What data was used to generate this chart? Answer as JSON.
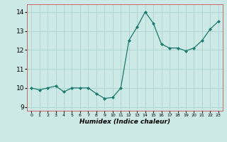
{
  "x": [
    0,
    1,
    2,
    3,
    4,
    5,
    6,
    7,
    8,
    9,
    10,
    11,
    12,
    13,
    14,
    15,
    16,
    17,
    18,
    19,
    20,
    21,
    22,
    23
  ],
  "y": [
    10.0,
    9.9,
    10.0,
    10.1,
    9.8,
    10.0,
    10.0,
    10.0,
    9.7,
    9.45,
    9.5,
    10.0,
    12.5,
    13.2,
    14.0,
    13.4,
    12.3,
    12.1,
    12.1,
    11.95,
    12.1,
    12.5,
    13.1,
    13.5
  ],
  "line_color": "#1a7a6e",
  "marker": "D",
  "marker_size": 2.0,
  "bg_color": "#cce9e5",
  "grid_color": "#aed4cf",
  "xlabel": "Humidex (Indice chaleur)",
  "ylim": [
    8.8,
    14.4
  ],
  "xlim": [
    -0.5,
    23.5
  ],
  "yticks": [
    9,
    10,
    11,
    12,
    13,
    14
  ],
  "xticks": [
    0,
    1,
    2,
    3,
    4,
    5,
    6,
    7,
    8,
    9,
    10,
    11,
    12,
    13,
    14,
    15,
    16,
    17,
    18,
    19,
    20,
    21,
    22,
    23
  ]
}
